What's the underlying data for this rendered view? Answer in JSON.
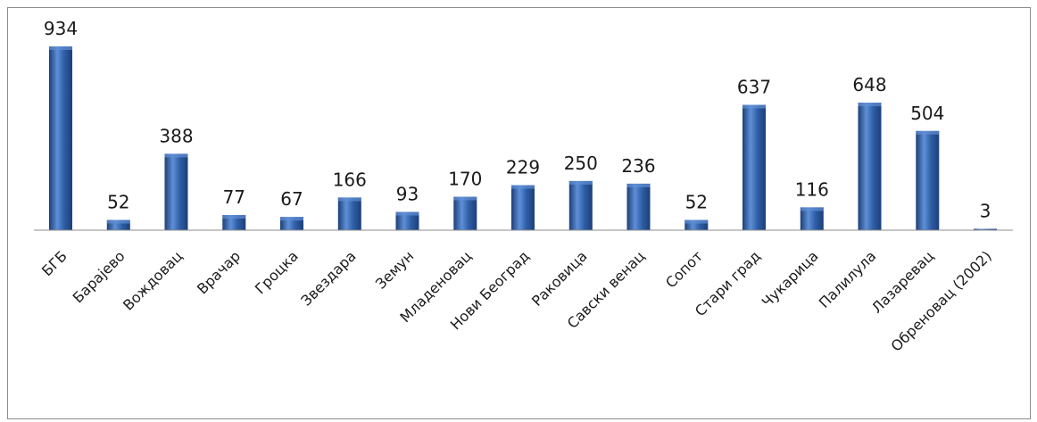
{
  "chart_data": {
    "type": "bar",
    "categories": [
      "БГБ",
      "Барајево",
      "Вождовац",
      "Врачар",
      "Гроцка",
      "Звездара",
      "Земун",
      "Младеновац",
      "Нови Београд",
      "Раковица",
      "Савски венац",
      "Сопот",
      "Стари град",
      "Чукарица",
      "Палилула",
      "Лазаревац",
      "Обреновац (2002)"
    ],
    "values": [
      934,
      52,
      388,
      77,
      67,
      166,
      93,
      170,
      229,
      250,
      236,
      52,
      637,
      116,
      648,
      504,
      3
    ],
    "title": "",
    "xlabel": "",
    "ylabel": "",
    "ylim": [
      0,
      934
    ],
    "grid": false,
    "legend": "none",
    "colors": {
      "bar": "#2e5ea6",
      "bar_light": "#5f8fd6",
      "bar_dark": "#1c3f78",
      "axis": "#8c8c8c"
    }
  }
}
